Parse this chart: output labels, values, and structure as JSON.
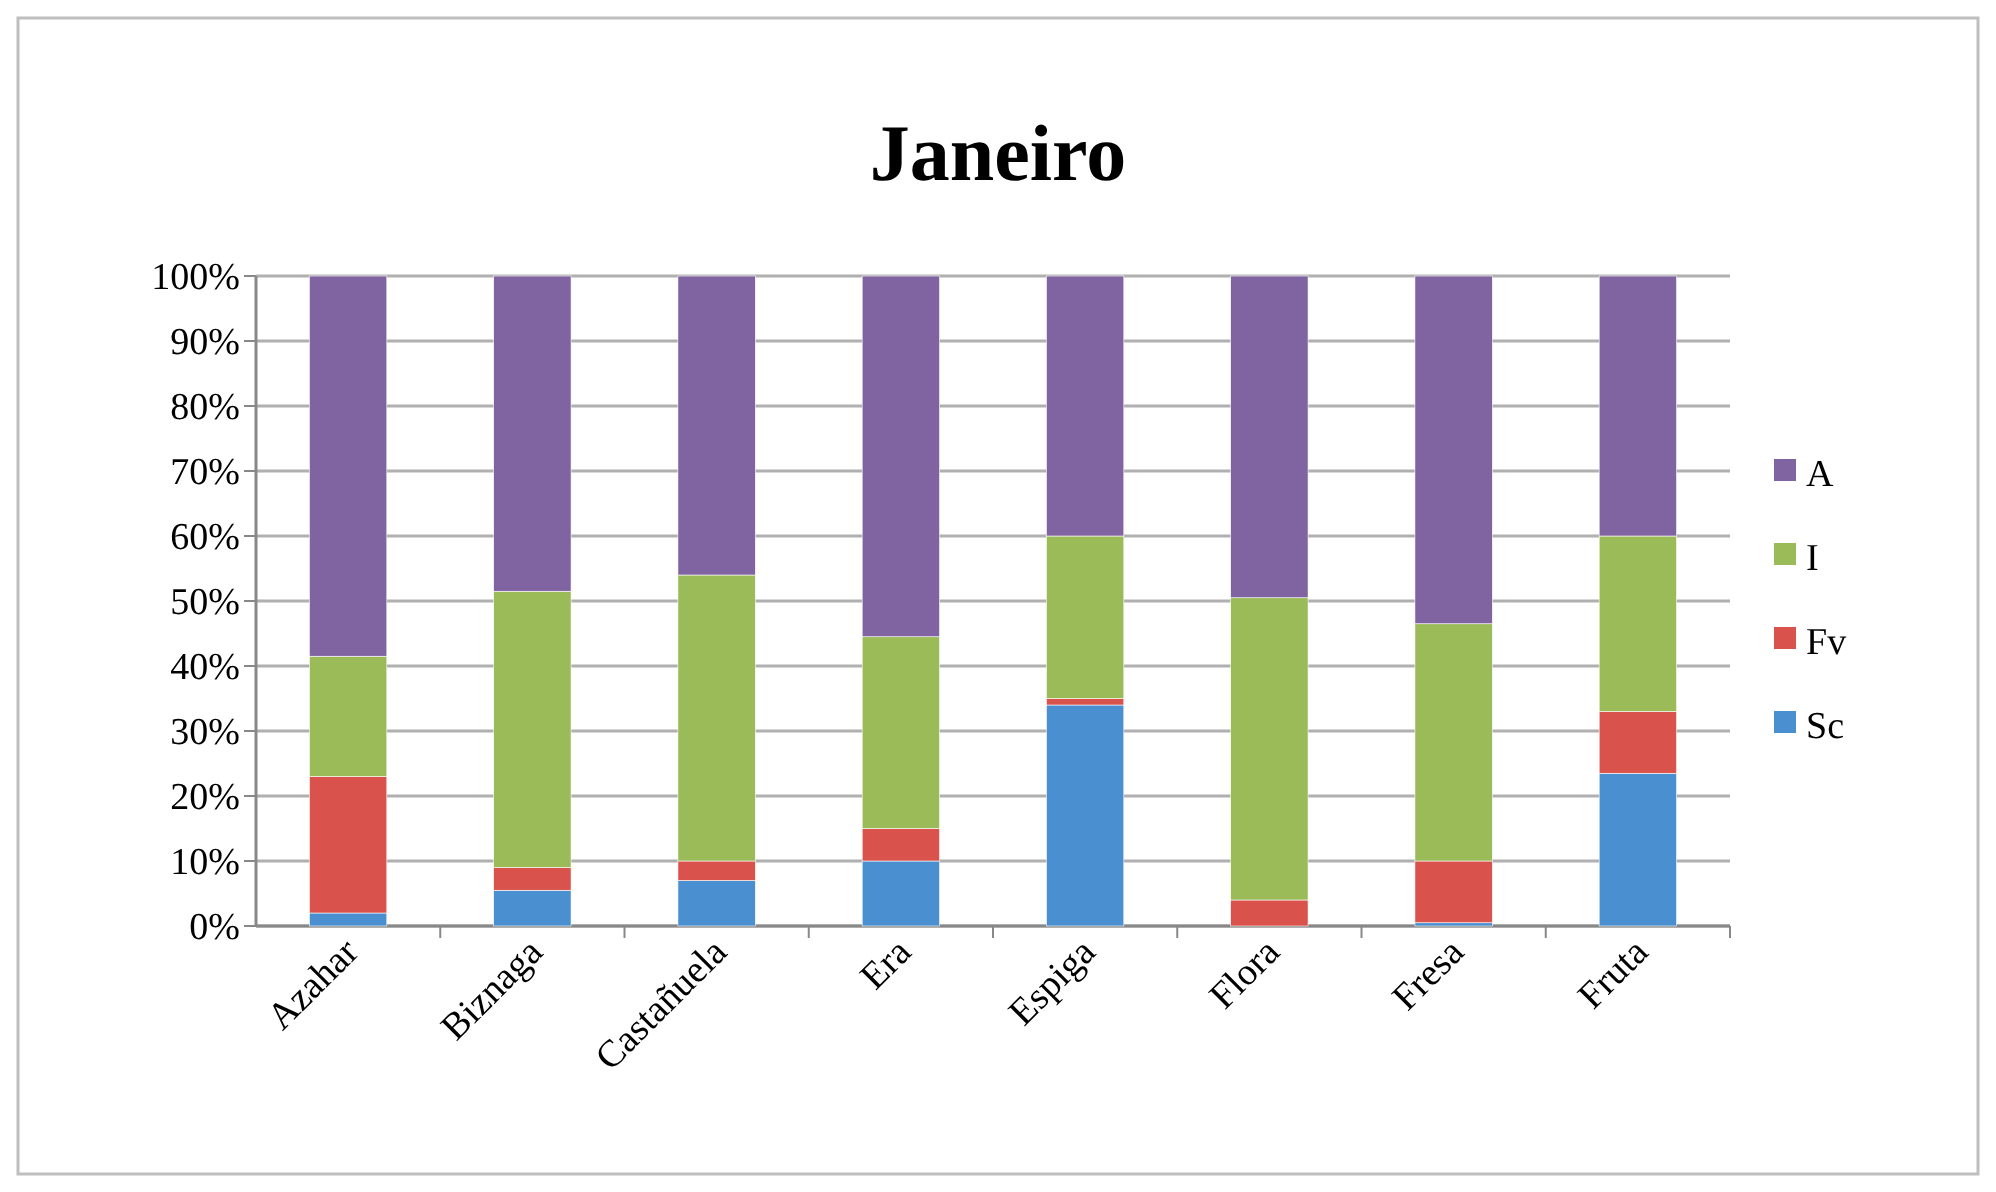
{
  "chart_data": {
    "type": "bar",
    "title": "Janeiro",
    "stacked": true,
    "grid": "y",
    "legend": "right",
    "categories": [
      "Azahar",
      "Biznaga",
      "Castañuela",
      "Era",
      "Espiga",
      "Flora",
      "Fresa",
      "Fruta"
    ],
    "ylim": [
      0,
      100
    ],
    "yticks": [
      {
        "value": 0,
        "label": "0%"
      },
      {
        "value": 10,
        "label": "10%"
      },
      {
        "value": 20,
        "label": "20%"
      },
      {
        "value": 30,
        "label": "30%"
      },
      {
        "value": 40,
        "label": "40%"
      },
      {
        "value": 50,
        "label": "50%"
      },
      {
        "value": 60,
        "label": "60%"
      },
      {
        "value": 70,
        "label": "70%"
      },
      {
        "value": 80,
        "label": "80%"
      },
      {
        "value": 90,
        "label": "90%"
      },
      {
        "value": 100,
        "label": "100%"
      }
    ],
    "series": [
      {
        "name": "Sc",
        "color": "#4a8fd0",
        "values": [
          2,
          5.5,
          7,
          10,
          34,
          0,
          0.5,
          23.5
        ]
      },
      {
        "name": "Fv",
        "color": "#d9524b",
        "values": [
          21,
          3.5,
          3,
          5,
          1,
          4,
          9.5,
          9.5
        ]
      },
      {
        "name": "I",
        "color": "#9bbb59",
        "values": [
          18.5,
          42.5,
          44,
          29.5,
          25,
          46.5,
          36.5,
          27
        ]
      },
      {
        "name": "A",
        "color": "#8064a2",
        "values": [
          58.5,
          48.5,
          46,
          55.5,
          40,
          49.5,
          53.5,
          40
        ]
      }
    ]
  }
}
